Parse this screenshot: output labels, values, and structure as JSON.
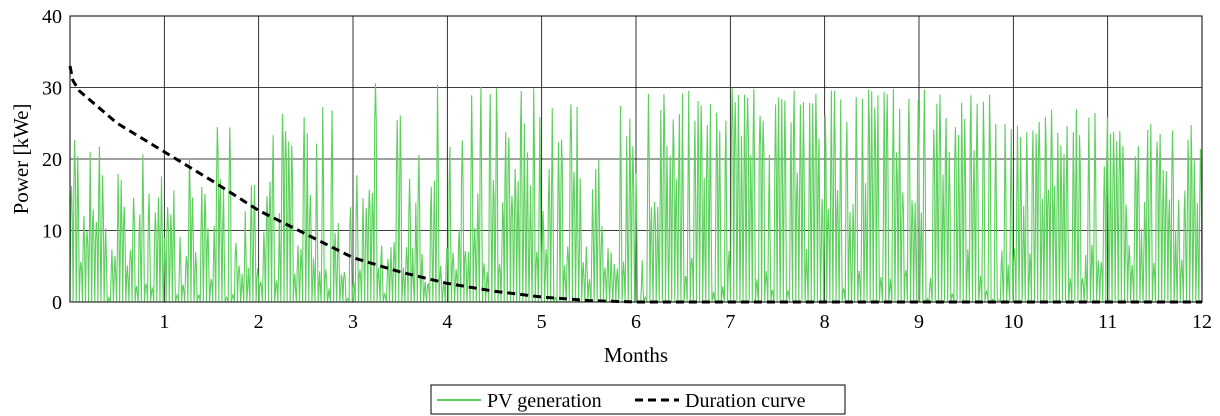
{
  "chart_data": {
    "type": "line",
    "xlabel": "Months",
    "ylabel": "Power [kWe]",
    "xlim": [
      0,
      12
    ],
    "ylim": [
      0,
      40
    ],
    "xticks": [
      "1",
      "2",
      "3",
      "4",
      "5",
      "6",
      "7",
      "8",
      "9",
      "10",
      "11",
      "12"
    ],
    "yticks": [
      "0",
      "10",
      "20",
      "30",
      "40"
    ],
    "grid": true,
    "legend_position": "bottom-center",
    "series": [
      {
        "name": "PV generation",
        "style": "solid",
        "color": "#5ccf5c",
        "monthly_daily_peak_range_kWe": [
          [
            0,
            27
          ],
          [
            2,
            27
          ],
          [
            3,
            32
          ],
          [
            4,
            33
          ],
          [
            4,
            32
          ],
          [
            5,
            30
          ],
          [
            24,
            30
          ],
          [
            25,
            30
          ],
          [
            25,
            30
          ],
          [
            24,
            30
          ],
          [
            23,
            27
          ],
          [
            20,
            25
          ]
        ],
        "annual_max_kWe": 33
      },
      {
        "name": "Duration curve",
        "style": "dashed",
        "color": "#000000",
        "x": [
          0,
          0.03,
          0.1,
          0.5,
          1,
          1.5,
          2,
          2.5,
          3,
          3.5,
          4,
          4.5,
          5,
          5.5,
          6,
          7,
          8,
          9,
          10,
          11,
          12
        ],
        "y": [
          33,
          31,
          29.5,
          25,
          21,
          17,
          12.8,
          9.5,
          6.2,
          4.2,
          2.6,
          1.5,
          0.7,
          0.2,
          0,
          0,
          0,
          0,
          0,
          0,
          0
        ]
      }
    ]
  }
}
